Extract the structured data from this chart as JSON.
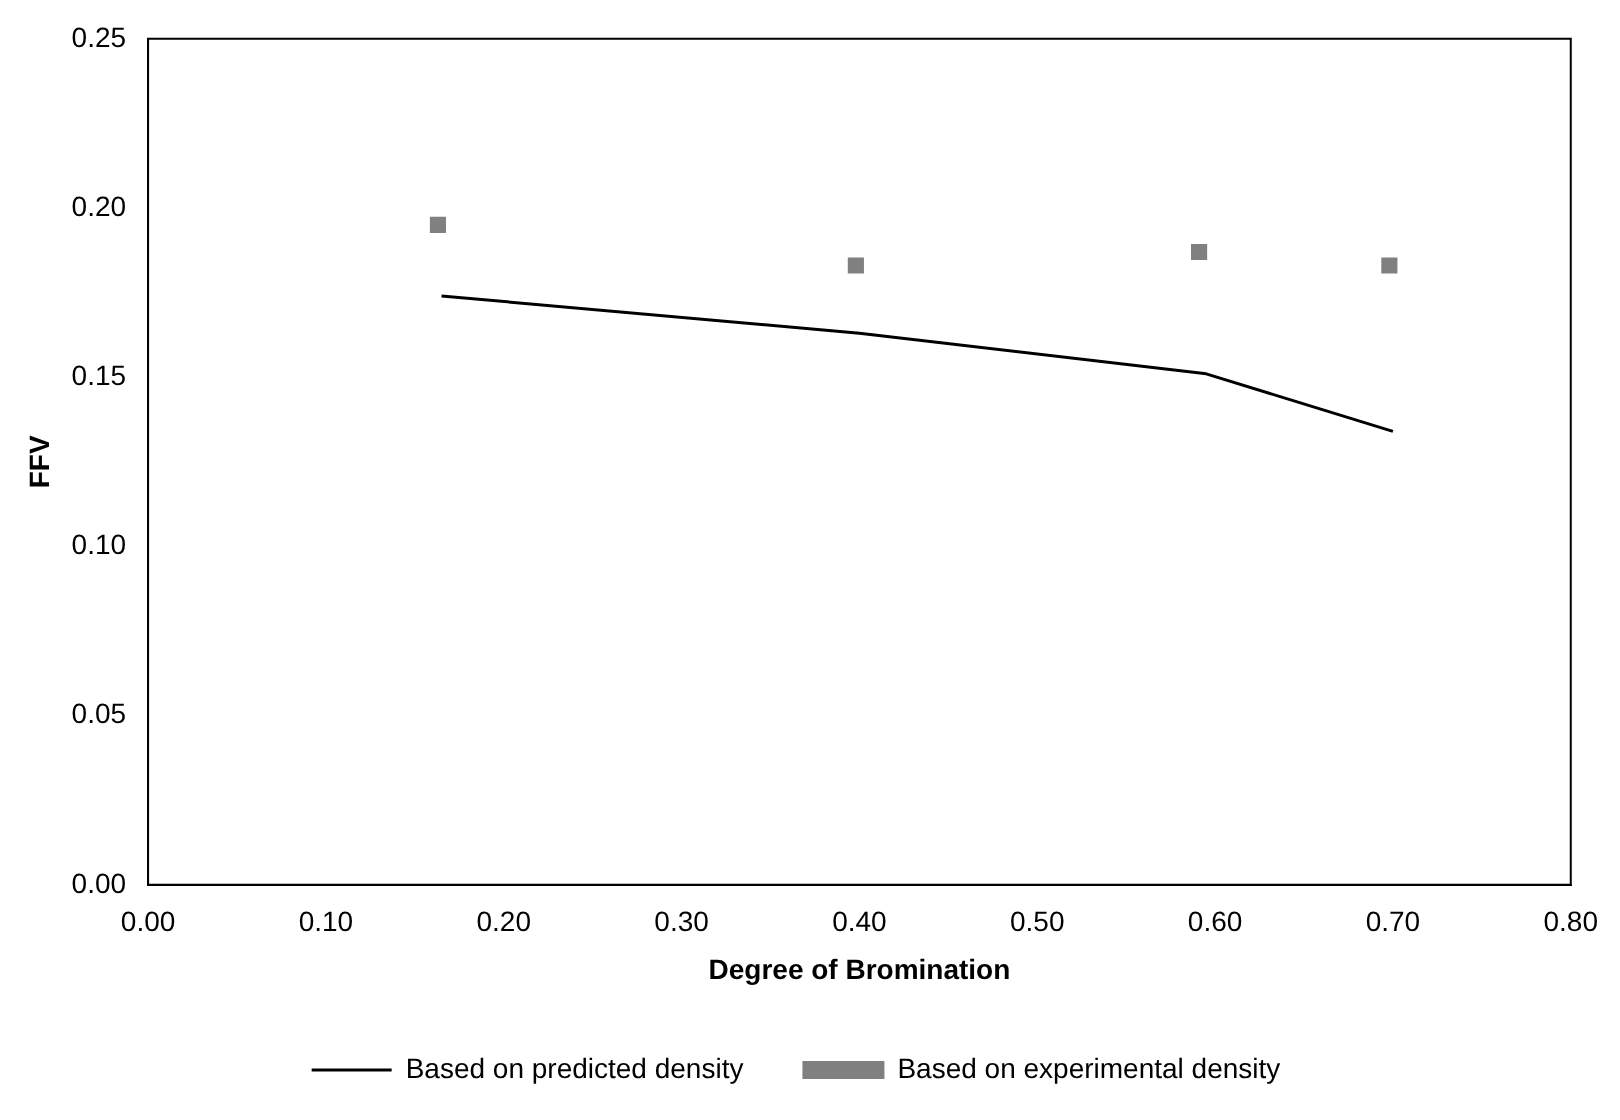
{
  "chart_data": {
    "type": "line",
    "xlabel": "Degree of Bromination",
    "ylabel": "FFV",
    "xlim": [
      0,
      0.8
    ],
    "xticks": [
      {
        "value": 0,
        "label": "0.00"
      },
      {
        "value": 0.1,
        "label": "0.10"
      },
      {
        "value": 0.2,
        "label": "0.20"
      },
      {
        "value": 0.3,
        "label": "0.30"
      },
      {
        "value": 0.4,
        "label": "0.40"
      },
      {
        "value": 0.5,
        "label": "0.50"
      },
      {
        "value": 0.6,
        "label": "0.60"
      },
      {
        "value": 0.7,
        "label": "0.70"
      },
      {
        "value": 0.8,
        "label": "0.80"
      }
    ],
    "ylim": [
      0,
      0.25
    ],
    "yticks": [
      {
        "value": 0,
        "label": "0.00"
      },
      {
        "value": 0.05,
        "label": "0.05"
      },
      {
        "value": 0.1,
        "label": "0.10"
      },
      {
        "value": 0.15,
        "label": "0.15"
      },
      {
        "value": 0.2,
        "label": "0.20"
      },
      {
        "value": 0.25,
        "label": "0.25"
      }
    ],
    "grid": false,
    "legend": "bottom",
    "series": [
      {
        "name": "Based on predicted density",
        "color": "#000000",
        "marker": "none",
        "line_style": "solid",
        "x": [
          0.165,
          0.4,
          0.595,
          0.7
        ],
        "values": [
          0.174,
          0.163,
          0.151,
          0.134
        ]
      },
      {
        "name": "Based on experimental density",
        "type": "scatter",
        "color": "#808080",
        "marker": "square",
        "x": [
          0.163,
          0.398,
          0.591,
          0.698
        ],
        "values": [
          0.195,
          0.183,
          0.187,
          0.183
        ]
      }
    ]
  }
}
